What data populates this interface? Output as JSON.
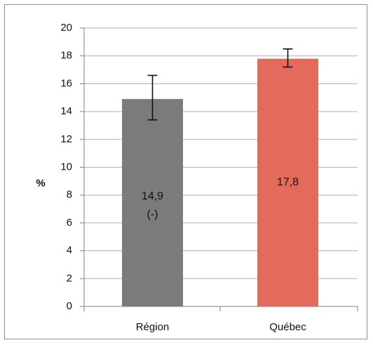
{
  "chart_data": {
    "type": "bar",
    "categories": [
      "Région",
      "Québec"
    ],
    "values": [
      14.9,
      17.8
    ],
    "error_bars": [
      {
        "low": 13.4,
        "high": 16.6
      },
      {
        "low": 17.2,
        "high": 18.5
      }
    ],
    "data_labels": [
      [
        "14,9",
        "(-)"
      ],
      [
        "17,8"
      ]
    ],
    "ylabel": "%",
    "ylim": [
      0,
      20
    ],
    "yticks": [
      0,
      2,
      4,
      6,
      8,
      10,
      12,
      14,
      16,
      18,
      20
    ],
    "ytick_labels": [
      "0",
      "2",
      "4",
      "6",
      "8",
      "10",
      "12",
      "14",
      "16",
      "18",
      "20"
    ],
    "grid": true,
    "legend": "none",
    "colors": {
      "bars": [
        "#7b7b7b",
        "#e46a5c"
      ],
      "grid": "#b0b0b0",
      "axis": "#7f7f7f",
      "frame": "#8f8f8f",
      "error_bar": "#111111"
    }
  }
}
